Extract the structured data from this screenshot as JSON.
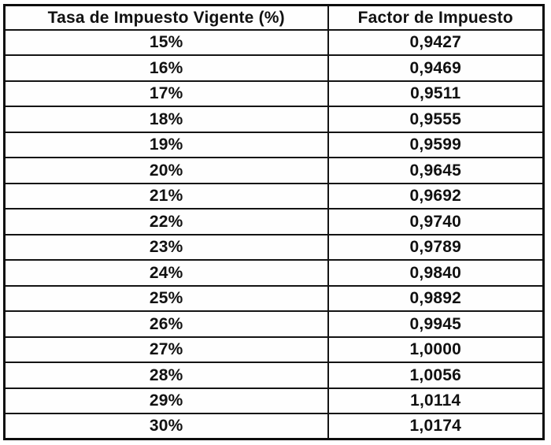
{
  "table": {
    "headers": {
      "rate": "Tasa de Impuesto Vigente (%)",
      "factor": "Factor de Impuesto"
    },
    "rows": [
      {
        "rate": "15%",
        "factor": "0,9427"
      },
      {
        "rate": "16%",
        "factor": "0,9469"
      },
      {
        "rate": "17%",
        "factor": "0,9511"
      },
      {
        "rate": "18%",
        "factor": "0,9555"
      },
      {
        "rate": "19%",
        "factor": "0,9599"
      },
      {
        "rate": "20%",
        "factor": "0,9645"
      },
      {
        "rate": "21%",
        "factor": "0,9692"
      },
      {
        "rate": "22%",
        "factor": "0,9740"
      },
      {
        "rate": "23%",
        "factor": "0,9789"
      },
      {
        "rate": "24%",
        "factor": "0,9840"
      },
      {
        "rate": "25%",
        "factor": "0,9892"
      },
      {
        "rate": "26%",
        "factor": "0,9945"
      },
      {
        "rate": "27%",
        "factor": "1,0000"
      },
      {
        "rate": "28%",
        "factor": "1,0056"
      },
      {
        "rate": "29%",
        "factor": "1,0114"
      },
      {
        "rate": "30%",
        "factor": "1,0174"
      }
    ]
  },
  "colors": {
    "border": "#141414",
    "text": "#111111",
    "background": "#ffffff"
  }
}
